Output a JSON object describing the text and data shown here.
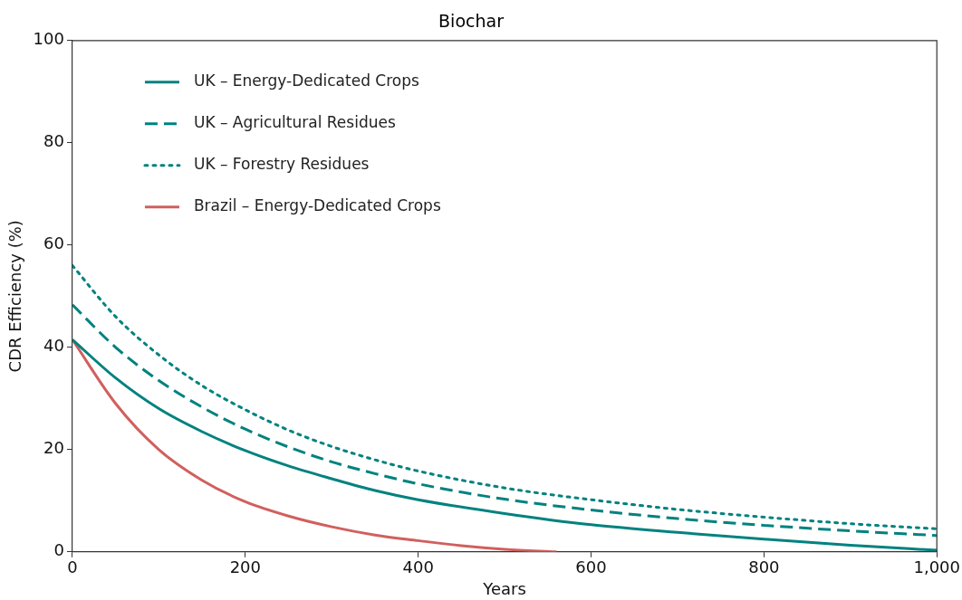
{
  "chart_data": {
    "type": "line",
    "title": "Biochar",
    "xlabel": "Years",
    "ylabel": "CDR Efficiency (%)",
    "xlim": [
      0,
      1000
    ],
    "ylim": [
      0,
      100
    ],
    "xticks": [
      0,
      200,
      400,
      600,
      800,
      {
        "value": 1000,
        "label": "1,000"
      }
    ],
    "yticks": [
      0,
      20,
      40,
      60,
      80,
      100
    ],
    "grid": false,
    "legend": "top left",
    "marker": "none",
    "series": [
      {
        "name": "UK – Energy-Dedicated Crops",
        "color": "#00827f",
        "line_style": "solid",
        "x": [
          0,
          50,
          100,
          150,
          200,
          250,
          300,
          350,
          400,
          500,
          600,
          700,
          800,
          900,
          1000
        ],
        "values": [
          41.5,
          34,
          28,
          23.5,
          19.8,
          16.8,
          14.3,
          12,
          10.2,
          7.5,
          5.3,
          3.8,
          2.5,
          1.3,
          0.3
        ]
      },
      {
        "name": "UK – Agricultural Residues",
        "color": "#00827f",
        "line_style": "dashed",
        "x": [
          0,
          50,
          100,
          150,
          200,
          250,
          300,
          350,
          400,
          500,
          600,
          700,
          800,
          900,
          1000
        ],
        "values": [
          48.3,
          40,
          33.5,
          28.3,
          24,
          20.5,
          17.6,
          15.3,
          13.3,
          10.3,
          8.2,
          6.5,
          5.2,
          4.1,
          3.2
        ]
      },
      {
        "name": "UK – Forestry Residues",
        "color": "#00827f",
        "line_style": "dotted",
        "x": [
          0,
          50,
          100,
          150,
          200,
          250,
          300,
          350,
          400,
          500,
          600,
          700,
          800,
          900,
          1000
        ],
        "values": [
          56,
          46,
          38.5,
          32.5,
          27.8,
          23.8,
          20.6,
          18,
          15.8,
          12.5,
          10.2,
          8.3,
          6.8,
          5.5,
          4.5
        ]
      },
      {
        "name": "Brazil – Energy-Dedicated Crops",
        "color": "#d0605e",
        "line_style": "solid",
        "x": [
          0,
          50,
          100,
          150,
          200,
          250,
          300,
          350,
          400,
          450,
          500,
          560
        ],
        "values": [
          41.5,
          29,
          20,
          14,
          9.8,
          7,
          4.9,
          3.3,
          2.2,
          1.2,
          0.5,
          0
        ]
      }
    ]
  }
}
